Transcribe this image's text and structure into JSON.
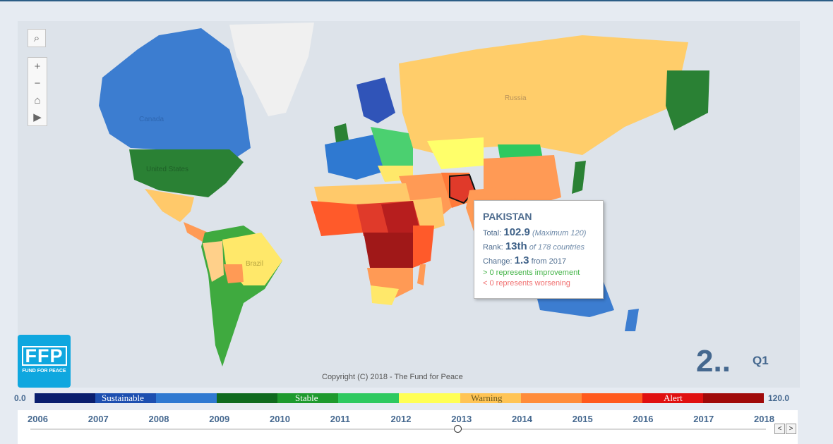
{
  "map": {
    "zoom_in": "+",
    "zoom_out": "−",
    "home_icon": "home-icon",
    "play_icon": "play-icon",
    "search_icon": "search-icon",
    "country_labels": {
      "russia": "Russia",
      "canada": "Canada",
      "united_states": "United States",
      "brazil": "Brazil"
    },
    "copyright": "Copyright (C) 2018 - The Fund for Peace"
  },
  "logo": {
    "mark": "FFP",
    "text": "FUND FOR PEACE"
  },
  "tooltip": {
    "country": "PAKISTAN",
    "total_label": "Total:",
    "total_value": "102.9",
    "total_note": "(Maximum 120)",
    "rank_label": "Rank:",
    "rank_value": "13th",
    "rank_note": "of 178 countries",
    "change_label": "Change:",
    "change_value": "1.3",
    "change_note": "from 2017",
    "improvement_note": "> 0 represents improvement",
    "worsening_note": "< 0 represents worsening"
  },
  "summary": {
    "big_number": "2..",
    "quarter": "Q1"
  },
  "legend": {
    "min": "0.0",
    "max": "120.0",
    "labels": [
      "Sustainable",
      "Stable",
      "Warning",
      "Alert"
    ],
    "colors": [
      "#0a1e6e",
      "#1d4fb0",
      "#2f79d1",
      "#0f6a1f",
      "#1e9a2e",
      "#2ec960",
      "#ffff55",
      "#ffc455",
      "#ff8c3a",
      "#ff5a1e",
      "#e01010",
      "#a00a0a"
    ]
  },
  "timeline": {
    "years": [
      "2006",
      "2007",
      "2008",
      "2009",
      "2010",
      "2011",
      "2012",
      "2013",
      "2014",
      "2015",
      "2016",
      "2017",
      "2018"
    ],
    "selected_year": "2013",
    "prev": "<",
    "next": ">"
  }
}
